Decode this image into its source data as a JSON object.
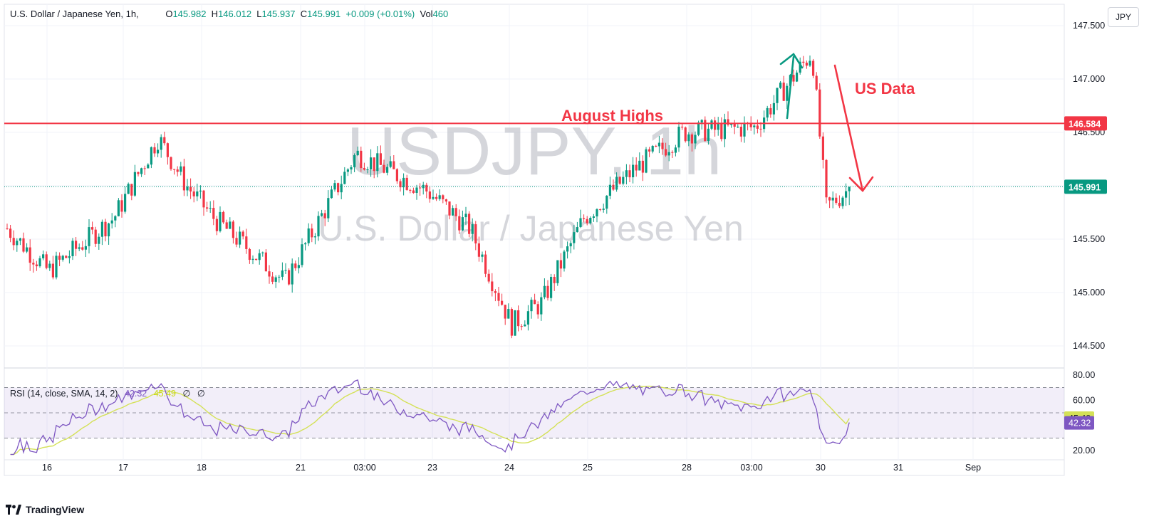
{
  "header": {
    "symbol": "U.S. Dollar / Japanese Yen, 1h,",
    "open_label": "O",
    "open": "145.982",
    "high_label": "H",
    "high": "146.012",
    "low_label": "L",
    "low": "145.937",
    "close_label": "C",
    "close": "145.991",
    "change": "+0.009 (+0.01%)",
    "vol_label": "Vol",
    "vol": "460",
    "currency": "JPY"
  },
  "watermark": {
    "ticker": "USDJPY, 1h",
    "name": "U.S. Dollar / Japanese Yen"
  },
  "annotations": {
    "august_highs": "August Highs",
    "us_data": "US Data"
  },
  "rsi_legend": {
    "label": "RSI (14, close, SMA, 14, 2)",
    "rsi": "42.32",
    "sma": "45.49",
    "extra1": "∅",
    "extra2": "∅"
  },
  "brand": "TradingView",
  "colors": {
    "up": "#089981",
    "down": "#f23645",
    "rsi": "#7e57c2",
    "rsi_sma": "#d4e157",
    "level": "#f23645",
    "grid": "#f0f3fa"
  },
  "chart_data": [
    {
      "type": "candlestick",
      "title": "U.S. Dollar / Japanese Yen, 1h,",
      "ylim": [
        144.3,
        147.7
      ],
      "y_ticks": [
        "147.500",
        "147.000",
        "146.500",
        "146.000",
        "145.500",
        "145.000",
        "144.500"
      ],
      "x_ticks": [
        "16",
        "17",
        "18",
        "21",
        "03:00",
        "23",
        "24",
        "25",
        "28",
        "03:00",
        "30",
        "31",
        "Sep"
      ],
      "current_price": {
        "value": 145.991,
        "label": "145.991"
      },
      "horizontal_line": {
        "value": 146.584,
        "label": "146.584"
      },
      "key_points": [
        {
          "x": "16",
          "close": 145.6
        },
        {
          "x": "16",
          "close": 145.2
        },
        {
          "x": "17",
          "close": 145.7
        },
        {
          "x": "17",
          "close": 146.45
        },
        {
          "x": "18",
          "close": 146.0
        },
        {
          "x": "18",
          "close": 145.7
        },
        {
          "x": "21",
          "close": 145.1
        },
        {
          "x": "03:00",
          "close": 146.3
        },
        {
          "x": "23",
          "close": 145.95
        },
        {
          "x": "23",
          "close": 145.6
        },
        {
          "x": "24",
          "close": 144.7
        },
        {
          "x": "24",
          "close": 144.9
        },
        {
          "x": "25",
          "close": 145.7
        },
        {
          "x": "25",
          "close": 146.15
        },
        {
          "x": "28",
          "close": 146.5
        },
        {
          "x": "03:00",
          "close": 146.55
        },
        {
          "x": "30",
          "close": 147.25
        },
        {
          "x": "30",
          "close": 145.8
        },
        {
          "x": "30",
          "close": 145.991
        }
      ]
    },
    {
      "type": "line",
      "title": "RSI (14, close, SMA, 14, 2)",
      "ylim": [
        15,
        85
      ],
      "y_ticks": [
        "80.00",
        "60.00",
        "20.00"
      ],
      "bands": [
        70,
        50,
        30
      ],
      "series": [
        {
          "name": "RSI",
          "last": 42.32,
          "last_label": "42.32"
        },
        {
          "name": "SMA",
          "last": 45.49,
          "last_label": "45.49"
        }
      ]
    }
  ]
}
